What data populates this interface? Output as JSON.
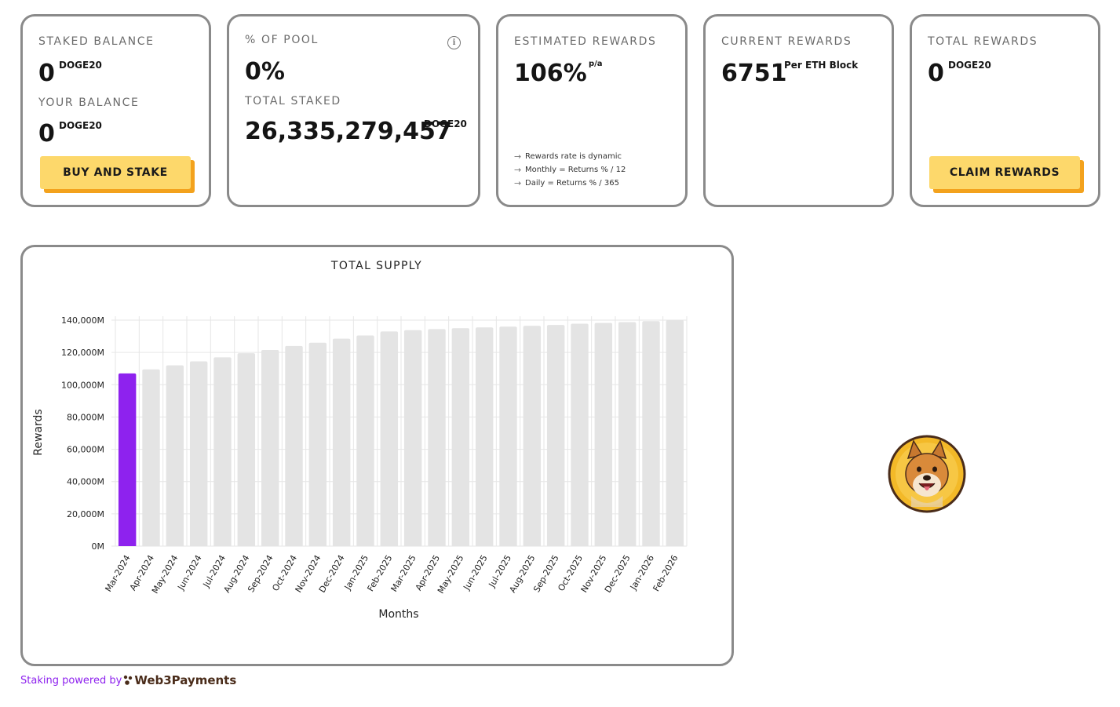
{
  "stats": {
    "staked_balance": {
      "label": "STAKED BALANCE",
      "value": "0",
      "unit": "DOGE20"
    },
    "your_balance": {
      "label": "YOUR BALANCE",
      "value": "0",
      "unit": "DOGE20"
    },
    "buy_and_stake_label": "BUY AND STAKE",
    "pool_percent": {
      "label": "% OF POOL",
      "value": "0%"
    },
    "total_staked": {
      "label": "TOTAL STAKED",
      "value": "26,335,279,457",
      "unit": "DOGE20"
    },
    "estimated_rewards": {
      "label": "ESTIMATED REWARDS",
      "value": "106%",
      "unit": "p/a",
      "notes": [
        "Rewards rate is dynamic",
        "Monthly = Returns % / 12",
        "Daily = Returns % / 365"
      ]
    },
    "current_rewards": {
      "label": "CURRENT REWARDS",
      "value": "6751",
      "unit": "Per ETH Block"
    },
    "total_rewards": {
      "label": "TOTAL REWARDS",
      "value": "0",
      "unit": "DOGE20"
    },
    "claim_rewards_label": "CLAIM REWARDS"
  },
  "icons": {
    "info": "info-icon",
    "note_arrow": "arrow-right-icon",
    "brand_logo": "web3payments-paw-icon",
    "mascot": "doge-mascot-avatar"
  },
  "colors": {
    "accent_button": "#fdd86b",
    "button_shadow": "#f3a21d",
    "highlight_bar": "#8e22ee",
    "bar": "#e4e4e4",
    "footer_text": "#8e22ee",
    "brand": "#4a2c1a"
  },
  "chart_data": {
    "type": "bar",
    "title": "TOTAL SUPPLY",
    "xlabel": "Months",
    "ylabel": "Rewards",
    "ylim": [
      0,
      140000
    ],
    "yticks": [
      0,
      20000,
      40000,
      60000,
      80000,
      100000,
      120000,
      140000
    ],
    "ytick_labels": [
      "0M",
      "20,000M",
      "40,000M",
      "60,000M",
      "80,000M",
      "100,000M",
      "120,000M",
      "140,000M"
    ],
    "grid": true,
    "categories": [
      "Mar-2024",
      "Apr-2024",
      "May-2024",
      "Jun-2024",
      "Jul-2024",
      "Aug-2024",
      "Sep-2024",
      "Oct-2024",
      "Nov-2024",
      "Dec-2024",
      "Jan-2025",
      "Feb-2025",
      "Mar-2025",
      "Apr-2025",
      "May-2025",
      "Jun-2025",
      "Jul-2025",
      "Aug-2025",
      "Sep-2025",
      "Oct-2025",
      "Nov-2025",
      "Dec-2025",
      "Jan-2026",
      "Feb-2026"
    ],
    "values": [
      107000,
      109500,
      112000,
      114500,
      117000,
      119500,
      121500,
      124000,
      126000,
      128500,
      130500,
      133000,
      133800,
      134500,
      135000,
      135500,
      136000,
      136500,
      137000,
      137800,
      138300,
      138800,
      139400,
      140000
    ],
    "highlight_index": 0
  },
  "footer": {
    "prefix": "Staking powered by",
    "brand": "Web3Payments"
  }
}
